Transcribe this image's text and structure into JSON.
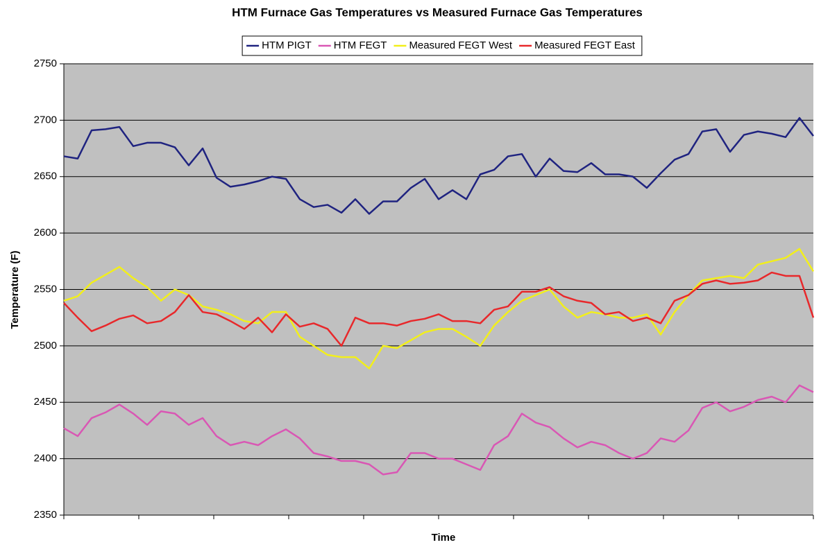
{
  "chart_data": {
    "type": "line",
    "title": "HTM Furnace Gas Temperatures vs Measured Furnace Gas Temperatures",
    "x_label": "Time",
    "y_label": "Temperature (F)",
    "ylim": [
      2350,
      2750
    ],
    "yticks": [
      2350,
      2400,
      2450,
      2500,
      2550,
      2600,
      2650,
      2700,
      2750
    ],
    "grid": true,
    "legend": "top",
    "series": [
      {
        "name": "HTM PIGT",
        "color": "#1f2380",
        "values": [
          2668,
          2666,
          2691,
          2692,
          2694,
          2677,
          2680,
          2680,
          2676,
          2660,
          2675,
          2649,
          2641,
          2643,
          2646,
          2650,
          2648,
          2630,
          2623,
          2625,
          2618,
          2630,
          2617,
          2628,
          2628,
          2640,
          2648,
          2630,
          2638,
          2630,
          2652,
          2656,
          2668,
          2670,
          2650,
          2666,
          2655,
          2654,
          2662,
          2652,
          2652,
          2650,
          2640,
          2653,
          2665,
          2670,
          2690,
          2692,
          2672,
          2687,
          2690,
          2688,
          2685,
          2702,
          2686
        ]
      },
      {
        "name": "HTM FEGT",
        "color": "#d957b4",
        "values": [
          2427,
          2420,
          2436,
          2441,
          2448,
          2440,
          2430,
          2442,
          2440,
          2430,
          2436,
          2420,
          2412,
          2415,
          2412,
          2420,
          2426,
          2418,
          2405,
          2402,
          2398,
          2398,
          2395,
          2386,
          2388,
          2405,
          2405,
          2400,
          2400,
          2395,
          2390,
          2412,
          2420,
          2440,
          2432,
          2428,
          2418,
          2410,
          2415,
          2412,
          2405,
          2400,
          2405,
          2418,
          2415,
          2425,
          2445,
          2450,
          2442,
          2446,
          2452,
          2455,
          2450,
          2465,
          2459
        ]
      },
      {
        "name": "Measured FEGT West",
        "color": "#f2ef1a",
        "values": [
          2540,
          2544,
          2556,
          2563,
          2570,
          2560,
          2552,
          2540,
          2550,
          2545,
          2535,
          2532,
          2528,
          2522,
          2520,
          2530,
          2530,
          2508,
          2500,
          2492,
          2490,
          2490,
          2480,
          2500,
          2498,
          2505,
          2512,
          2515,
          2515,
          2508,
          2500,
          2518,
          2530,
          2540,
          2545,
          2550,
          2535,
          2525,
          2530,
          2528,
          2525,
          2525,
          2528,
          2510,
          2530,
          2545,
          2558,
          2560,
          2562,
          2560,
          2572,
          2575,
          2578,
          2586,
          2566
        ]
      },
      {
        "name": "Measured FEGT East",
        "color": "#e8282b",
        "values": [
          2538,
          2525,
          2513,
          2518,
          2524,
          2527,
          2520,
          2522,
          2530,
          2545,
          2530,
          2528,
          2522,
          2515,
          2525,
          2512,
          2528,
          2517,
          2520,
          2515,
          2500,
          2525,
          2520,
          2520,
          2518,
          2522,
          2524,
          2528,
          2522,
          2522,
          2520,
          2532,
          2535,
          2548,
          2548,
          2552,
          2544,
          2540,
          2538,
          2528,
          2530,
          2522,
          2525,
          2520,
          2540,
          2545,
          2555,
          2558,
          2555,
          2556,
          2558,
          2565,
          2562,
          2562,
          2525
        ]
      }
    ]
  }
}
